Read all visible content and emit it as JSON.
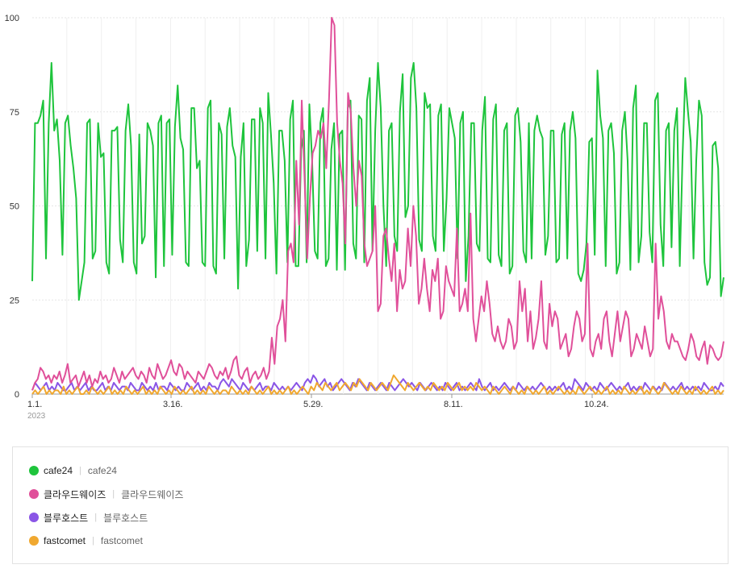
{
  "chart_data": {
    "type": "line",
    "ylim": [
      0,
      100
    ],
    "y_ticks": [
      "0",
      "25",
      "50",
      "75",
      "100"
    ],
    "x_ticks": [
      "1.1.",
      "3.16.",
      "5.29.",
      "8.11.",
      "10.24."
    ],
    "x_year_label": "2023",
    "grid": true,
    "legend_placement": "bottom",
    "series": [
      {
        "name": "cafe24",
        "color": "#1ec43c",
        "values": [
          30,
          72,
          72,
          74,
          78,
          36,
          72,
          88,
          70,
          73,
          62,
          37,
          72,
          74,
          66,
          60,
          52,
          25,
          30,
          35,
          72,
          73,
          36,
          38,
          72,
          63,
          64,
          35,
          32,
          70,
          70,
          71,
          41,
          35,
          70,
          77,
          66,
          35,
          32,
          69,
          40,
          42,
          72,
          70,
          66,
          31,
          72,
          74,
          34,
          72,
          73,
          37,
          71,
          82,
          68,
          65,
          35,
          34,
          76,
          76,
          60,
          62,
          35,
          34,
          76,
          78,
          34,
          32,
          72,
          69,
          36,
          71,
          76,
          66,
          63,
          28,
          63,
          72,
          34,
          41,
          73,
          73,
          38,
          76,
          72,
          36,
          80,
          69,
          56,
          32,
          70,
          70,
          62,
          35,
          73,
          78,
          34,
          34,
          65,
          70,
          35,
          77,
          62,
          38,
          36,
          72,
          76,
          34,
          36,
          65,
          72,
          33,
          69,
          70,
          33,
          76,
          78,
          40,
          36,
          74,
          73,
          35,
          78,
          84,
          38,
          70,
          88,
          76,
          50,
          34,
          70,
          72,
          42,
          38,
          75,
          85,
          47,
          50,
          84,
          88,
          76,
          41,
          38,
          80,
          76,
          77,
          42,
          38,
          74,
          77,
          38,
          52,
          76,
          72,
          68,
          36,
          72,
          75,
          30,
          42,
          72,
          72,
          40,
          38,
          70,
          79,
          36,
          35,
          73,
          77,
          37,
          34,
          70,
          72,
          32,
          34,
          74,
          76,
          67,
          38,
          35,
          72,
          36,
          70,
          74,
          70,
          68,
          37,
          42,
          70,
          70,
          35,
          36,
          69,
          72,
          36,
          70,
          75,
          68,
          32,
          30,
          33,
          40,
          67,
          68,
          37,
          86,
          74,
          68,
          34,
          70,
          72,
          64,
          32,
          35,
          70,
          75,
          62,
          33,
          76,
          82,
          35,
          42,
          72,
          72,
          43,
          35,
          78,
          80,
          45,
          34,
          70,
          72,
          39,
          70,
          76,
          34,
          63,
          84,
          75,
          67,
          36,
          62,
          78,
          74,
          35,
          29,
          31,
          66,
          67,
          60,
          26,
          31
        ]
      },
      {
        "name": "클라우드웨이즈",
        "color": "#e0509a",
        "values": [
          1,
          3,
          4,
          7,
          6,
          4,
          5,
          3,
          5,
          4,
          6,
          3,
          5,
          8,
          3,
          4,
          5,
          2,
          4,
          6,
          3,
          5,
          2,
          4,
          3,
          6,
          4,
          5,
          3,
          4,
          7,
          5,
          3,
          6,
          4,
          5,
          6,
          7,
          5,
          4,
          6,
          5,
          3,
          7,
          5,
          4,
          8,
          6,
          4,
          5,
          7,
          9,
          6,
          5,
          8,
          7,
          4,
          6,
          5,
          4,
          3,
          6,
          5,
          4,
          6,
          8,
          7,
          5,
          4,
          6,
          5,
          7,
          4,
          6,
          9,
          10,
          5,
          4,
          6,
          7,
          3,
          5,
          6,
          4,
          5,
          7,
          4,
          6,
          15,
          8,
          18,
          20,
          25,
          14,
          38,
          40,
          35,
          62,
          45,
          78,
          58,
          36,
          52,
          64,
          66,
          70,
          68,
          72,
          60,
          78,
          100,
          98,
          72,
          62,
          56,
          40,
          80,
          75,
          60,
          50,
          62,
          58,
          40,
          34,
          36,
          38,
          50,
          22,
          24,
          42,
          44,
          36,
          30,
          40,
          22,
          33,
          28,
          30,
          44,
          34,
          50,
          42,
          24,
          28,
          36,
          28,
          22,
          33,
          30,
          36,
          20,
          22,
          34,
          30,
          28,
          26,
          44,
          22,
          24,
          28,
          22,
          48,
          20,
          14,
          20,
          26,
          22,
          30,
          24,
          16,
          14,
          18,
          14,
          12,
          14,
          20,
          18,
          12,
          14,
          30,
          22,
          28,
          14,
          22,
          12,
          15,
          20,
          30,
          14,
          12,
          24,
          18,
          22,
          20,
          12,
          14,
          16,
          10,
          12,
          18,
          22,
          20,
          14,
          16,
          40,
          12,
          10,
          14,
          16,
          12,
          20,
          22,
          14,
          10,
          16,
          22,
          14,
          18,
          22,
          20,
          10,
          12,
          16,
          14,
          12,
          18,
          14,
          10,
          12,
          40,
          20,
          26,
          22,
          14,
          12,
          16,
          14,
          14,
          12,
          10,
          9,
          12,
          16,
          14,
          10,
          9,
          12,
          14,
          8,
          13,
          12,
          10,
          9,
          10,
          14
        ]
      },
      {
        "name": "블루호스트",
        "color": "#8a55e6",
        "values": [
          1,
          3,
          2,
          1,
          2,
          3,
          1,
          2,
          1,
          3,
          2,
          1,
          1,
          2,
          3,
          1,
          2,
          1,
          2,
          3,
          1,
          2,
          1,
          1,
          2,
          3,
          1,
          2,
          1,
          3,
          2,
          1,
          2,
          2,
          1,
          3,
          2,
          1,
          1,
          3,
          2,
          1,
          2,
          1,
          3,
          1,
          2,
          2,
          1,
          3,
          2,
          1,
          2,
          1,
          1,
          3,
          2,
          1,
          2,
          3,
          1,
          2,
          1,
          3,
          2,
          2,
          1,
          3,
          4,
          3,
          2,
          4,
          3,
          2,
          1,
          3,
          2,
          1,
          2,
          1,
          2,
          3,
          1,
          2,
          2,
          1,
          3,
          2,
          1,
          2,
          1,
          2,
          1,
          2,
          3,
          2,
          1,
          3,
          4,
          3,
          5,
          4,
          2,
          3,
          4,
          2,
          3,
          1,
          2,
          3,
          4,
          3,
          2,
          1,
          3,
          2,
          4,
          3,
          2,
          1,
          3,
          2,
          1,
          2,
          3,
          2,
          1,
          3,
          2,
          1,
          2,
          3,
          4,
          3,
          2,
          3,
          2,
          1,
          3,
          2,
          1,
          2,
          3,
          2,
          1,
          2,
          1,
          3,
          2,
          1,
          2,
          3,
          1,
          2,
          1,
          2,
          3,
          2,
          1,
          4,
          2,
          1,
          2,
          3,
          1,
          2,
          1,
          2,
          3,
          2,
          1,
          2,
          1,
          3,
          2,
          1,
          2,
          1,
          2,
          1,
          2,
          3,
          2,
          1,
          2,
          1,
          2,
          1,
          2,
          3,
          1,
          2,
          1,
          4,
          3,
          2,
          1,
          3,
          2,
          1,
          2,
          1,
          3,
          2,
          1,
          2,
          3,
          2,
          1,
          2,
          1,
          2,
          3,
          1,
          2,
          1,
          2,
          1,
          3,
          2,
          1,
          2,
          1,
          2,
          1,
          3,
          2,
          1,
          2,
          1,
          2,
          3,
          1,
          2,
          1,
          2,
          1,
          2,
          1,
          3,
          2,
          1,
          1,
          2,
          1,
          3,
          2
        ]
      },
      {
        "name": "fastcomet",
        "color": "#f0a830",
        "values": [
          0,
          1,
          0,
          1,
          2,
          0,
          1,
          0,
          1,
          1,
          0,
          2,
          0,
          1,
          0,
          1,
          2,
          0,
          0,
          1,
          0,
          2,
          1,
          0,
          1,
          0,
          1,
          2,
          0,
          1,
          0,
          1,
          0,
          2,
          1,
          0,
          1,
          0,
          1,
          2,
          0,
          1,
          0,
          1,
          0,
          2,
          1,
          0,
          1,
          0,
          2,
          1,
          0,
          1,
          0,
          1,
          2,
          0,
          1,
          0,
          1,
          0,
          2,
          1,
          0,
          1,
          0,
          1,
          1,
          0,
          2,
          1,
          0,
          1,
          0,
          1,
          0,
          2,
          1,
          0,
          1,
          0,
          1,
          2,
          0,
          1,
          0,
          1,
          0,
          1,
          2,
          0,
          1,
          0,
          1,
          2,
          1,
          0,
          2,
          1,
          3,
          2,
          1,
          3,
          2,
          1,
          2,
          3,
          1,
          2,
          3,
          2,
          1,
          3,
          2,
          4,
          3,
          2,
          1,
          3,
          2,
          1,
          2,
          3,
          2,
          1,
          3,
          5,
          4,
          3,
          2,
          1,
          3,
          2,
          1,
          2,
          3,
          2,
          1,
          2,
          1,
          3,
          2,
          1,
          2,
          1,
          3,
          2,
          1,
          2,
          3,
          1,
          2,
          1,
          2,
          1,
          3,
          2,
          1,
          2,
          1,
          0,
          2,
          1,
          0,
          1,
          2,
          1,
          0,
          2,
          1,
          0,
          1,
          0,
          2,
          1,
          0,
          1,
          0,
          1,
          2,
          0,
          1,
          0,
          1,
          2,
          1,
          0,
          1,
          0,
          1,
          0,
          2,
          1,
          0,
          1,
          2,
          1,
          0,
          1,
          0,
          1,
          2,
          0,
          1,
          0,
          1,
          0,
          2,
          1,
          0,
          1,
          0,
          1,
          2,
          0,
          1,
          0,
          2,
          1,
          0,
          1,
          3,
          2,
          1,
          0,
          1,
          0,
          2,
          1,
          0,
          1,
          0,
          2,
          1,
          0,
          1,
          0,
          1,
          2,
          0,
          1,
          0,
          1
        ]
      }
    ]
  },
  "legend": [
    {
      "label": "cafe24",
      "sub": "cafe24",
      "color": "#1ec43c"
    },
    {
      "label": "클라우드웨이즈",
      "sub": "클라우드웨이즈",
      "color": "#e0509a"
    },
    {
      "label": "블루호스트",
      "sub": "블루호스트",
      "color": "#8a55e6"
    },
    {
      "label": "fastcomet",
      "sub": "fastcomet",
      "color": "#f0a830"
    }
  ]
}
